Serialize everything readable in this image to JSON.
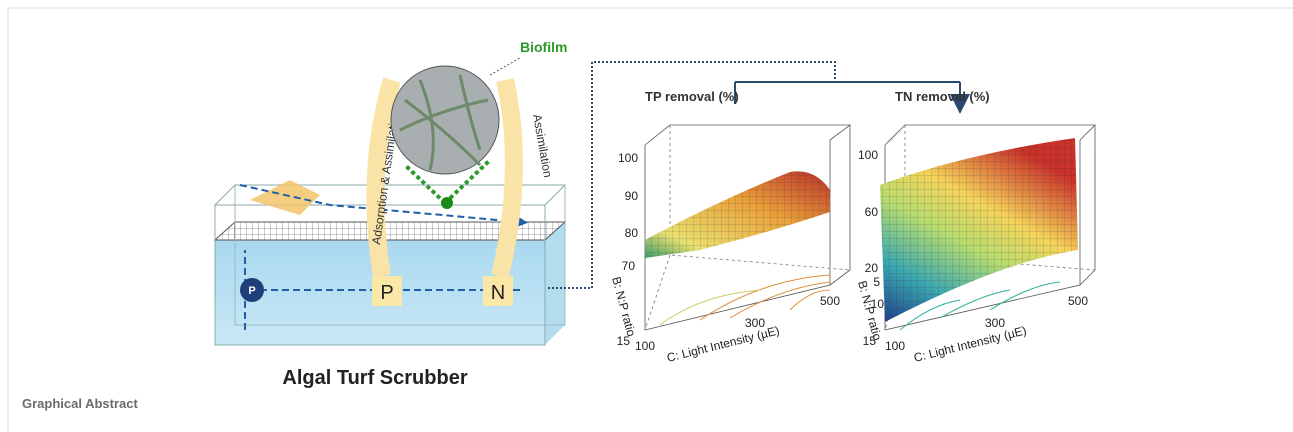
{
  "figure": {
    "diagram": {
      "title": "Algal Turf Scrubber",
      "biofilm": "Biofilm",
      "left_arrow": "Adsorption & Assimilation",
      "right_arrow": "Assimilation",
      "pump": "P",
      "p_box": "P",
      "n_box": "N"
    },
    "plots": [
      {
        "title": "TP removal (%)",
        "zticks": [
          100,
          90,
          80,
          70
        ],
        "yaxis_label": "B: N:P ratio",
        "yticks": [
          15
        ],
        "xaxis_label": "C: Light Intensity (µE)",
        "xticks": [
          100,
          300,
          500
        ]
      },
      {
        "title": "TN removal (%)",
        "zticks": [
          100,
          60,
          20
        ],
        "yaxis_label": "B: N:P ratio",
        "yticks": [
          5,
          10,
          15
        ],
        "xaxis_label": "C: Light Intensity (µE)",
        "xticks": [
          100,
          300,
          500
        ]
      }
    ]
  },
  "caption": "Graphical Abstract"
}
